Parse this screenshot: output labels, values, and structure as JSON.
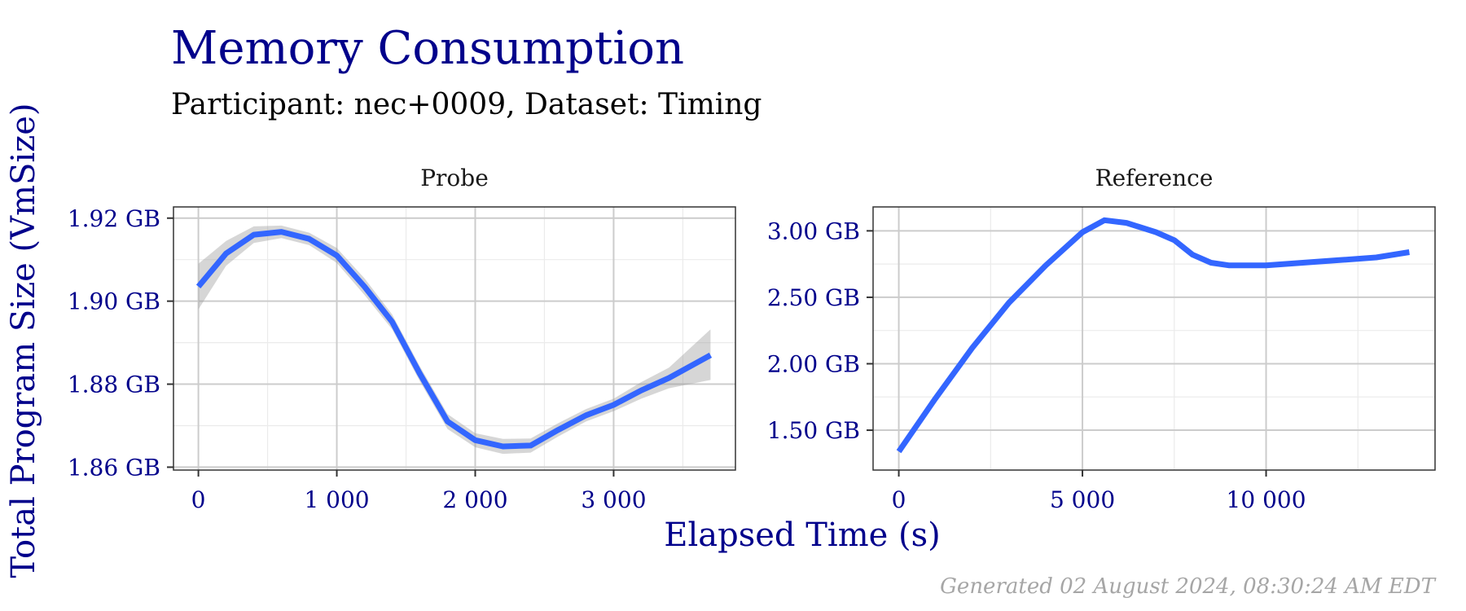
{
  "title": "Memory Consumption",
  "subtitle": "Participant: nec+0009, Dataset: Timing",
  "xlabel": "Elapsed Time (s)",
  "ylabel": "Total Program Size (VmSize)",
  "caption": "Generated 02 August 2024, 08:30:24 AM EDT",
  "colors": {
    "line": "#3366ff",
    "ribbon": "#999999",
    "text_accent": "#00008b",
    "caption": "#a6a6a6"
  },
  "chart_data": [
    {
      "type": "line",
      "panel": "Probe",
      "x_ticks": [
        0,
        1000,
        2000,
        3000
      ],
      "x_tick_labels": [
        "0",
        "1 000",
        "2 000",
        "3 000"
      ],
      "xlim": [
        -180,
        3880
      ],
      "y_ticks": [
        1.86,
        1.88,
        1.9,
        1.92
      ],
      "y_tick_labels": [
        "1.86 GB",
        "1.88 GB",
        "1.90 GB",
        "1.92 GB"
      ],
      "ylim": [
        1.8593,
        1.9227
      ],
      "series": [
        {
          "x": [
            0,
            200,
            400,
            600,
            800,
            1000,
            1200,
            1400,
            1600,
            1800,
            2000,
            2200,
            2400,
            2600,
            2800,
            3000,
            3200,
            3400,
            3700
          ],
          "y": [
            1.9035,
            1.9115,
            1.916,
            1.9167,
            1.915,
            1.911,
            1.9035,
            1.895,
            1.8825,
            1.871,
            1.8665,
            1.865,
            1.8652,
            1.869,
            1.8725,
            1.875,
            1.8785,
            1.8815,
            1.887
          ],
          "ci_low": [
            1.898,
            1.9085,
            1.914,
            1.9152,
            1.9135,
            1.9092,
            1.9015,
            1.8932,
            1.8807,
            1.8692,
            1.8648,
            1.8632,
            1.8635,
            1.8674,
            1.871,
            1.8735,
            1.8765,
            1.879,
            1.881
          ],
          "ci_high": [
            1.909,
            1.9145,
            1.918,
            1.9182,
            1.9165,
            1.9128,
            1.9055,
            1.8968,
            1.8843,
            1.8728,
            1.8682,
            1.8668,
            1.8669,
            1.8706,
            1.874,
            1.8765,
            1.8805,
            1.884,
            1.8932
          ]
        }
      ]
    },
    {
      "type": "line",
      "panel": "Reference",
      "x_ticks": [
        0,
        5000,
        10000
      ],
      "x_tick_labels": [
        "0",
        "5 000",
        "10 000"
      ],
      "xlim": [
        -700,
        14600
      ],
      "y_ticks": [
        1.5,
        2.0,
        2.5,
        3.0
      ],
      "y_tick_labels": [
        "1.50 GB",
        "2.00 GB",
        "2.50 GB",
        "3.00 GB"
      ],
      "ylim": [
        1.2,
        3.18
      ],
      "series": [
        {
          "x": [
            0,
            1000,
            2000,
            3000,
            4000,
            5000,
            5600,
            6200,
            7000,
            7500,
            8000,
            8500,
            9000,
            10000,
            11000,
            12000,
            13000,
            13900
          ],
          "y": [
            1.34,
            1.74,
            2.12,
            2.46,
            2.74,
            2.99,
            3.08,
            3.06,
            2.99,
            2.93,
            2.82,
            2.76,
            2.74,
            2.74,
            2.76,
            2.78,
            2.8,
            2.84
          ],
          "ci_low": [
            1.33,
            1.73,
            2.11,
            2.45,
            2.73,
            2.98,
            3.07,
            3.05,
            2.98,
            2.92,
            2.81,
            2.75,
            2.73,
            2.73,
            2.75,
            2.77,
            2.79,
            2.83
          ],
          "ci_high": [
            1.35,
            1.75,
            2.13,
            2.47,
            2.75,
            3.0,
            3.09,
            3.07,
            3.0,
            2.94,
            2.83,
            2.77,
            2.75,
            2.75,
            2.77,
            2.79,
            2.81,
            2.85
          ]
        }
      ]
    }
  ]
}
